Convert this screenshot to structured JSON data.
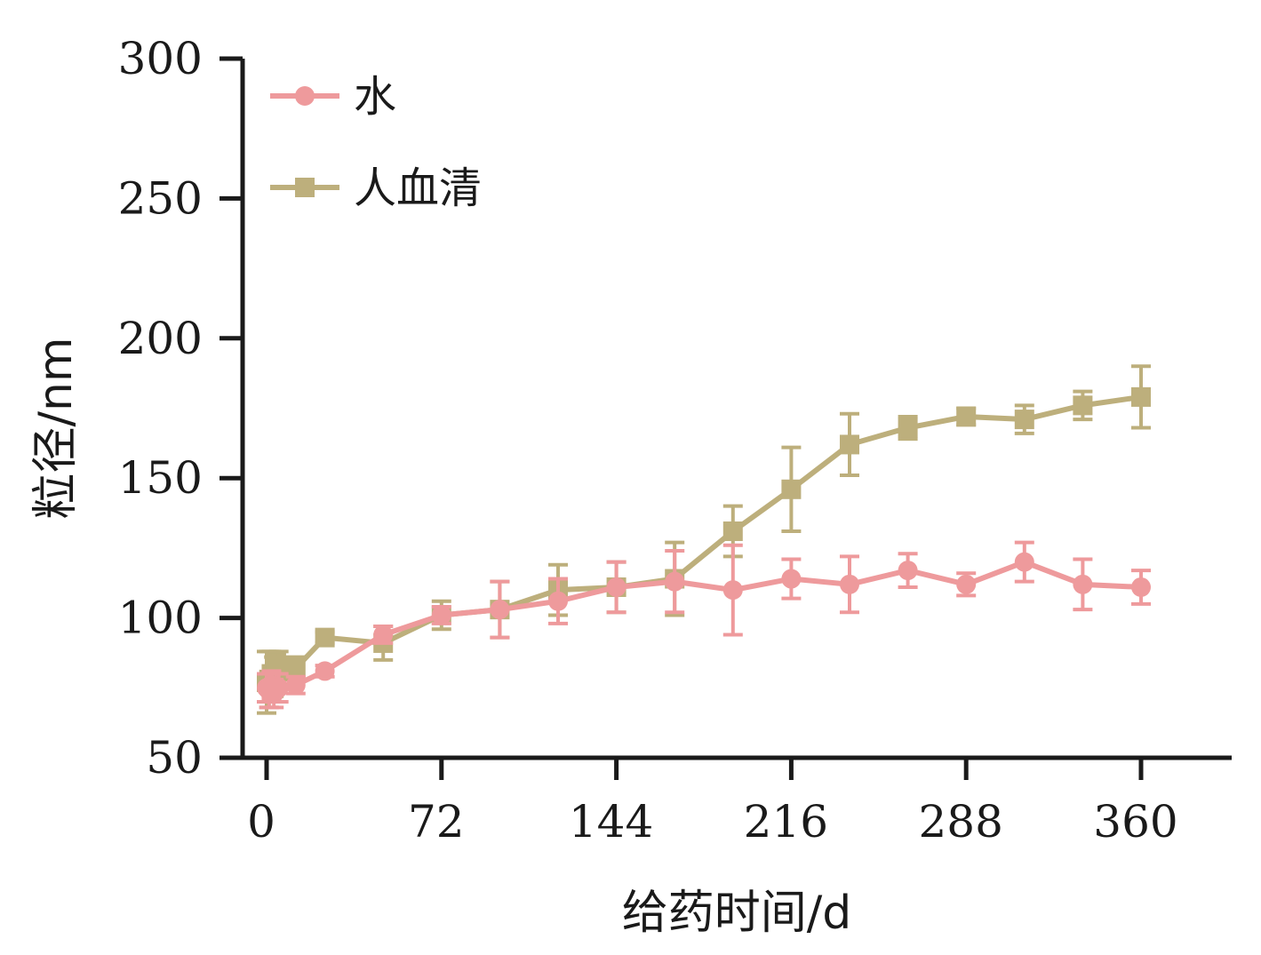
{
  "chart_data": {
    "type": "line",
    "xlabel": "给药时间/d",
    "ylabel": "粒径/nm",
    "xlim": [
      0,
      360
    ],
    "ylim": [
      50,
      300
    ],
    "xticks": [
      0,
      72,
      144,
      216,
      288,
      360
    ],
    "yticks": [
      50,
      100,
      150,
      200,
      250,
      300
    ],
    "xtick_labels": [
      "0",
      "72",
      "144",
      "216",
      "288",
      "360"
    ],
    "ytick_labels": [
      "50",
      "100",
      "150",
      "200",
      "250",
      "300"
    ],
    "grid": false,
    "legend_position": "top-left",
    "series": [
      {
        "name": "水",
        "color": "#EE9A9C",
        "marker": "circle",
        "x": [
          0,
          1,
          2,
          3,
          4,
          5,
          12,
          24,
          48,
          72,
          96,
          120,
          144,
          168,
          192,
          216,
          240,
          264,
          288,
          312,
          336,
          360
        ],
        "y": [
          75,
          74,
          76,
          73,
          75,
          75,
          76,
          81,
          94,
          101,
          103,
          106,
          111,
          113,
          110,
          114,
          112,
          117,
          112,
          120,
          112,
          111
        ],
        "err": [
          5,
          6,
          5,
          5,
          5,
          5,
          3,
          2,
          3,
          3,
          10,
          8,
          9,
          11,
          16,
          7,
          10,
          6,
          4,
          7,
          9,
          6
        ]
      },
      {
        "name": "人血清",
        "color": "#BDAF7C",
        "marker": "square",
        "x": [
          0,
          1,
          2,
          3,
          4,
          5,
          12,
          24,
          48,
          72,
          96,
          120,
          144,
          168,
          192,
          216,
          240,
          264,
          288,
          312,
          336,
          360
        ],
        "y": [
          77,
          78,
          80,
          79,
          81,
          83,
          82,
          93,
          91,
          101,
          103,
          110,
          111,
          114,
          131,
          146,
          162,
          168,
          172,
          171,
          176,
          179
        ],
        "err": [
          11,
          10,
          8,
          7,
          6,
          5,
          4,
          2,
          6,
          5,
          10,
          9,
          9,
          13,
          9,
          15,
          11,
          4,
          3,
          5,
          5,
          11
        ]
      }
    ]
  }
}
